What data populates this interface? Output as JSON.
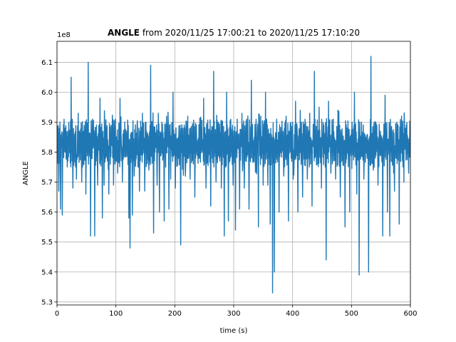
{
  "chart_data": {
    "type": "line",
    "title_bold": "ANGLE",
    "title_rest": " from 2020/11/25 17:00:21 to 2020/11/25 17:10:20",
    "xlabel": "time (s)",
    "ylabel": "ANGLE",
    "offset_text": "1e8",
    "xlim": [
      0,
      600
    ],
    "ylim": [
      5.29,
      6.17
    ],
    "x_ticks": [
      0,
      100,
      200,
      300,
      400,
      500,
      600
    ],
    "x_tick_labels": [
      "0",
      "100",
      "200",
      "300",
      "400",
      "500",
      "600"
    ],
    "y_ticks": [
      5.3,
      5.4,
      5.5,
      5.6,
      5.7,
      5.8,
      5.9,
      6.0,
      6.1
    ],
    "y_tick_labels": [
      "5.3",
      "5.4",
      "5.5",
      "5.6",
      "5.7",
      "5.8",
      "5.9",
      "6.0",
      "6.1"
    ],
    "grid": true,
    "color": "#1f77b4",
    "baseline": 5.83,
    "band": [
      5.75,
      5.91
    ],
    "spikes": [
      [
        3,
        5.67
      ],
      [
        6,
        5.61
      ],
      [
        9,
        5.59
      ],
      [
        12,
        5.91
      ],
      [
        18,
        5.87
      ],
      [
        24,
        6.05
      ],
      [
        27,
        5.68
      ],
      [
        33,
        5.71
      ],
      [
        36,
        5.93
      ],
      [
        42,
        5.7
      ],
      [
        45,
        5.87
      ],
      [
        49,
        5.66
      ],
      [
        53,
        6.1
      ],
      [
        57,
        5.52
      ],
      [
        60,
        5.91
      ],
      [
        64,
        5.52
      ],
      [
        69,
        5.69
      ],
      [
        73,
        5.98
      ],
      [
        77,
        5.58
      ],
      [
        80,
        5.69
      ],
      [
        84,
        5.88
      ],
      [
        88,
        5.66
      ],
      [
        92,
        5.89
      ],
      [
        96,
        5.69
      ],
      [
        99,
        5.91
      ],
      [
        103,
        5.73
      ],
      [
        107,
        5.98
      ],
      [
        111,
        5.7
      ],
      [
        118,
        5.86
      ],
      [
        122,
        5.58
      ],
      [
        124,
        5.48
      ],
      [
        128,
        5.59
      ],
      [
        131,
        5.72
      ],
      [
        136,
        5.89
      ],
      [
        140,
        5.67
      ],
      [
        145,
        5.93
      ],
      [
        149,
        5.67
      ],
      [
        152,
        5.87
      ],
      [
        156,
        5.74
      ],
      [
        159,
        6.09
      ],
      [
        164,
        5.53
      ],
      [
        170,
        5.69
      ],
      [
        172,
        5.93
      ],
      [
        174,
        5.6
      ],
      [
        178,
        5.9
      ],
      [
        182,
        5.57
      ],
      [
        186,
        5.92
      ],
      [
        190,
        5.61
      ],
      [
        193,
        5.71
      ],
      [
        197,
        6.0
      ],
      [
        201,
        5.68
      ],
      [
        206,
        5.78
      ],
      [
        210,
        5.49
      ],
      [
        214,
        5.88
      ],
      [
        218,
        5.72
      ],
      [
        222,
        5.92
      ],
      [
        226,
        5.71
      ],
      [
        231,
        5.89
      ],
      [
        234,
        5.65
      ],
      [
        238,
        5.79
      ],
      [
        243,
        5.89
      ],
      [
        247,
        5.8
      ],
      [
        249,
        5.98
      ],
      [
        253,
        5.68
      ],
      [
        257,
        5.81
      ],
      [
        261,
        5.62
      ],
      [
        266,
        6.07
      ],
      [
        270,
        5.7
      ],
      [
        274,
        5.9
      ],
      [
        279,
        5.68
      ],
      [
        284,
        5.52
      ],
      [
        288,
        6.0
      ],
      [
        291,
        5.57
      ],
      [
        295,
        5.91
      ],
      [
        299,
        5.69
      ],
      [
        303,
        5.54
      ],
      [
        306,
        5.91
      ],
      [
        310,
        5.61
      ],
      [
        314,
        5.93
      ],
      [
        318,
        5.68
      ],
      [
        322,
        5.91
      ],
      [
        326,
        5.61
      ],
      [
        330,
        6.04
      ],
      [
        334,
        5.77
      ],
      [
        338,
        5.91
      ],
      [
        342,
        5.55
      ],
      [
        346,
        5.92
      ],
      [
        350,
        5.69
      ],
      [
        354,
        6.0
      ],
      [
        358,
        5.69
      ],
      [
        362,
        5.56
      ],
      [
        366,
        5.33
      ],
      [
        369,
        5.4
      ],
      [
        373,
        5.91
      ],
      [
        377,
        5.6
      ],
      [
        381,
        5.85
      ],
      [
        385,
        5.72
      ],
      [
        389,
        5.92
      ],
      [
        393,
        5.57
      ],
      [
        397,
        5.9
      ],
      [
        401,
        5.71
      ],
      [
        405,
        5.97
      ],
      [
        409,
        5.6
      ],
      [
        413,
        5.94
      ],
      [
        417,
        5.65
      ],
      [
        421,
        5.91
      ],
      [
        425,
        5.71
      ],
      [
        429,
        5.93
      ],
      [
        433,
        5.62
      ],
      [
        437,
        6.07
      ],
      [
        441,
        5.77
      ],
      [
        445,
        5.95
      ],
      [
        449,
        5.68
      ],
      [
        453,
        5.89
      ],
      [
        457,
        5.44
      ],
      [
        461,
        5.97
      ],
      [
        465,
        5.73
      ],
      [
        469,
        5.91
      ],
      [
        473,
        5.71
      ],
      [
        477,
        5.94
      ],
      [
        481,
        5.65
      ],
      [
        485,
        5.83
      ],
      [
        489,
        5.55
      ],
      [
        493,
        5.85
      ],
      [
        497,
        5.6
      ],
      [
        501,
        5.9
      ],
      [
        505,
        6.0
      ],
      [
        509,
        5.66
      ],
      [
        513,
        5.39
      ],
      [
        517,
        5.9
      ],
      [
        521,
        5.71
      ],
      [
        525,
        5.84
      ],
      [
        529,
        5.4
      ],
      [
        533,
        6.12
      ],
      [
        537,
        5.74
      ],
      [
        541,
        5.9
      ],
      [
        545,
        5.69
      ],
      [
        549,
        5.87
      ],
      [
        553,
        5.52
      ],
      [
        557,
        5.99
      ],
      [
        561,
        5.6
      ],
      [
        565,
        5.52
      ],
      [
        569,
        5.87
      ],
      [
        573,
        5.67
      ],
      [
        577,
        5.9
      ],
      [
        581,
        5.56
      ],
      [
        585,
        5.92
      ],
      [
        589,
        5.7
      ],
      [
        593,
        5.89
      ],
      [
        597,
        5.73
      ]
    ]
  }
}
